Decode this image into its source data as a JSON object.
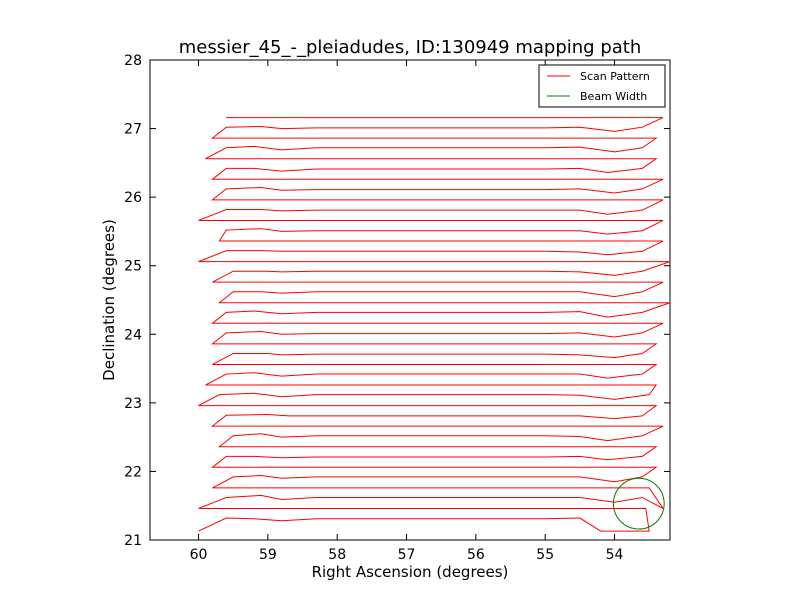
{
  "chart_data": {
    "type": "line",
    "title": "messier_45_-_pleiadudes, ID:130949 mapping path",
    "xlabel": "Right Ascension (degrees)",
    "ylabel": "Declination (degrees)",
    "xlim": [
      60.7,
      53.2
    ],
    "ylim": [
      21,
      28
    ],
    "x_inverted": true,
    "xticks": [
      60,
      59,
      58,
      57,
      56,
      55,
      54
    ],
    "xtick_labels": [
      "60",
      "59",
      "58",
      "57",
      "56",
      "55",
      "54"
    ],
    "yticks": [
      21,
      22,
      23,
      24,
      25,
      26,
      27,
      28
    ],
    "ytick_labels": [
      "21",
      "22",
      "23",
      "24",
      "25",
      "26",
      "27",
      "28"
    ],
    "grid": false,
    "legend": {
      "location": "upper right",
      "entries": [
        {
          "label": "Scan Pattern",
          "color": "#ff0000",
          "kind": "line"
        },
        {
          "label": "Beam Width",
          "color": "#008000",
          "kind": "line"
        }
      ]
    },
    "series": [
      {
        "name": "Scan Pattern",
        "color": "#ff0000",
        "points": [
          [
            60.0,
            21.13
          ],
          [
            59.6,
            21.32
          ],
          [
            59.2,
            21.31
          ],
          [
            58.8,
            21.28
          ],
          [
            58.3,
            21.31
          ],
          [
            55.7,
            21.31
          ],
          [
            55.0,
            21.31
          ],
          [
            54.5,
            21.32
          ],
          [
            54.2,
            21.13
          ],
          [
            53.5,
            21.13
          ],
          [
            53.55,
            21.46
          ],
          [
            60.0,
            21.46
          ],
          [
            59.6,
            21.62
          ],
          [
            59.1,
            21.65
          ],
          [
            58.8,
            21.59
          ],
          [
            58.3,
            21.62
          ],
          [
            55.0,
            21.62
          ],
          [
            54.5,
            21.62
          ],
          [
            54.0,
            21.55
          ],
          [
            53.6,
            21.62
          ],
          [
            53.3,
            21.46
          ],
          [
            53.5,
            21.76
          ],
          [
            59.8,
            21.76
          ],
          [
            59.5,
            21.92
          ],
          [
            59.1,
            21.94
          ],
          [
            58.8,
            21.9
          ],
          [
            58.3,
            21.92
          ],
          [
            54.5,
            21.92
          ],
          [
            54.0,
            21.85
          ],
          [
            53.6,
            21.92
          ],
          [
            53.4,
            22.06
          ],
          [
            59.8,
            22.06
          ],
          [
            59.6,
            22.22
          ],
          [
            59.2,
            22.22
          ],
          [
            58.8,
            22.2
          ],
          [
            58.3,
            22.21
          ],
          [
            55.0,
            22.21
          ],
          [
            54.5,
            22.22
          ],
          [
            54.1,
            22.17
          ],
          [
            53.6,
            22.22
          ],
          [
            53.4,
            22.36
          ],
          [
            59.7,
            22.36
          ],
          [
            59.5,
            22.52
          ],
          [
            59.1,
            22.55
          ],
          [
            58.8,
            22.5
          ],
          [
            58.3,
            22.52
          ],
          [
            55.0,
            22.52
          ],
          [
            54.5,
            22.51
          ],
          [
            54.1,
            22.45
          ],
          [
            53.6,
            22.52
          ],
          [
            53.3,
            22.66
          ],
          [
            59.8,
            22.66
          ],
          [
            59.6,
            22.82
          ],
          [
            59.0,
            22.83
          ],
          [
            58.7,
            22.81
          ],
          [
            58.3,
            22.81
          ],
          [
            55.0,
            22.81
          ],
          [
            54.5,
            22.81
          ],
          [
            54.0,
            22.77
          ],
          [
            53.6,
            22.81
          ],
          [
            53.4,
            22.96
          ],
          [
            60.0,
            22.96
          ],
          [
            59.7,
            23.12
          ],
          [
            59.2,
            23.14
          ],
          [
            58.8,
            23.09
          ],
          [
            58.3,
            23.12
          ],
          [
            55.0,
            23.12
          ],
          [
            54.5,
            23.11
          ],
          [
            54.0,
            23.05
          ],
          [
            53.5,
            23.12
          ],
          [
            53.4,
            23.26
          ],
          [
            59.9,
            23.26
          ],
          [
            59.6,
            23.42
          ],
          [
            59.2,
            23.44
          ],
          [
            58.8,
            23.39
          ],
          [
            58.3,
            23.42
          ],
          [
            55.0,
            23.42
          ],
          [
            54.5,
            23.42
          ],
          [
            54.1,
            23.36
          ],
          [
            53.6,
            23.42
          ],
          [
            53.4,
            23.56
          ],
          [
            59.8,
            23.56
          ],
          [
            59.5,
            23.72
          ],
          [
            59.0,
            23.72
          ],
          [
            58.8,
            23.7
          ],
          [
            58.3,
            23.71
          ],
          [
            55.0,
            23.71
          ],
          [
            54.5,
            23.7
          ],
          [
            54.0,
            23.66
          ],
          [
            53.6,
            23.72
          ],
          [
            53.4,
            23.86
          ],
          [
            59.8,
            23.86
          ],
          [
            59.6,
            24.02
          ],
          [
            59.1,
            24.04
          ],
          [
            58.8,
            24.0
          ],
          [
            58.3,
            24.01
          ],
          [
            55.0,
            24.01
          ],
          [
            54.5,
            24.02
          ],
          [
            54.0,
            23.96
          ],
          [
            53.6,
            24.02
          ],
          [
            53.3,
            24.16
          ],
          [
            59.8,
            24.16
          ],
          [
            59.6,
            24.32
          ],
          [
            59.2,
            24.34
          ],
          [
            58.8,
            24.3
          ],
          [
            58.3,
            24.32
          ],
          [
            55.0,
            24.32
          ],
          [
            54.5,
            24.33
          ],
          [
            54.1,
            24.25
          ],
          [
            53.6,
            24.32
          ],
          [
            53.2,
            24.46
          ],
          [
            59.7,
            24.46
          ],
          [
            59.5,
            24.62
          ],
          [
            59.1,
            24.62
          ],
          [
            58.8,
            24.6
          ],
          [
            58.3,
            24.62
          ],
          [
            55.0,
            24.62
          ],
          [
            54.5,
            24.62
          ],
          [
            54.0,
            24.55
          ],
          [
            53.6,
            24.62
          ],
          [
            53.3,
            24.76
          ],
          [
            59.8,
            24.76
          ],
          [
            59.5,
            24.92
          ],
          [
            59.0,
            24.92
          ],
          [
            58.8,
            24.91
          ],
          [
            58.3,
            24.92
          ],
          [
            55.0,
            24.92
          ],
          [
            54.5,
            24.91
          ],
          [
            54.0,
            24.86
          ],
          [
            53.6,
            24.92
          ],
          [
            53.2,
            25.06
          ],
          [
            60.0,
            25.06
          ],
          [
            59.6,
            25.22
          ],
          [
            59.1,
            25.22
          ],
          [
            58.8,
            25.21
          ],
          [
            58.3,
            25.21
          ],
          [
            55.0,
            25.21
          ],
          [
            54.5,
            25.2
          ],
          [
            54.1,
            25.16
          ],
          [
            53.6,
            25.21
          ],
          [
            53.3,
            25.36
          ],
          [
            59.7,
            25.36
          ],
          [
            59.6,
            25.52
          ],
          [
            59.1,
            25.54
          ],
          [
            58.8,
            25.5
          ],
          [
            58.3,
            25.51
          ],
          [
            55.0,
            25.51
          ],
          [
            54.5,
            25.51
          ],
          [
            54.1,
            25.46
          ],
          [
            53.6,
            25.51
          ],
          [
            53.3,
            25.66
          ],
          [
            60.0,
            25.66
          ],
          [
            59.6,
            25.82
          ],
          [
            59.1,
            25.82
          ],
          [
            58.8,
            25.8
          ],
          [
            58.3,
            25.81
          ],
          [
            55.0,
            25.81
          ],
          [
            54.5,
            25.81
          ],
          [
            54.1,
            25.75
          ],
          [
            53.6,
            25.81
          ],
          [
            53.3,
            25.96
          ],
          [
            59.8,
            25.96
          ],
          [
            59.6,
            26.12
          ],
          [
            59.1,
            26.14
          ],
          [
            58.8,
            26.1
          ],
          [
            58.3,
            26.11
          ],
          [
            55.0,
            26.11
          ],
          [
            54.5,
            26.12
          ],
          [
            54.0,
            26.06
          ],
          [
            53.6,
            26.12
          ],
          [
            53.3,
            26.26
          ],
          [
            59.8,
            26.26
          ],
          [
            59.6,
            26.42
          ],
          [
            59.2,
            26.42
          ],
          [
            58.8,
            26.38
          ],
          [
            58.3,
            26.41
          ],
          [
            55.0,
            26.41
          ],
          [
            54.5,
            26.42
          ],
          [
            54.1,
            26.36
          ],
          [
            53.6,
            26.42
          ],
          [
            53.4,
            26.56
          ],
          [
            59.9,
            26.56
          ],
          [
            59.6,
            26.72
          ],
          [
            59.2,
            26.74
          ],
          [
            58.8,
            26.69
          ],
          [
            58.3,
            26.72
          ],
          [
            55.0,
            26.72
          ],
          [
            54.5,
            26.73
          ],
          [
            54.0,
            26.66
          ],
          [
            53.6,
            26.72
          ],
          [
            53.4,
            26.86
          ],
          [
            59.8,
            26.86
          ],
          [
            59.6,
            27.02
          ],
          [
            59.1,
            27.03
          ],
          [
            58.8,
            27.0
          ],
          [
            58.3,
            27.01
          ],
          [
            55.0,
            27.01
          ],
          [
            54.5,
            27.02
          ],
          [
            54.0,
            26.96
          ],
          [
            53.6,
            27.02
          ],
          [
            53.3,
            27.16
          ],
          [
            59.6,
            27.16
          ]
        ]
      },
      {
        "name": "Beam Width",
        "color": "#008000",
        "shape": "circle",
        "center": [
          53.65,
          21.53
        ],
        "radius_deg": 0.37
      }
    ]
  }
}
